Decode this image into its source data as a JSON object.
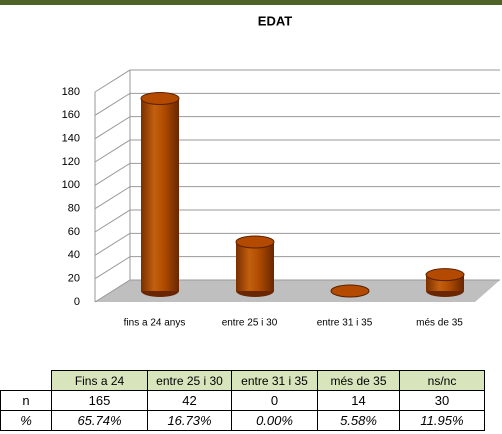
{
  "chart_data": {
    "type": "bar",
    "title": "EDAT",
    "categories": [
      "fins a 24 anys",
      "entre 25 i 30",
      "entre 31 i 35",
      "més de 35"
    ],
    "values": [
      165,
      42,
      0,
      14
    ],
    "color": "#b34a00",
    "ylim": [
      0,
      180
    ],
    "yticks": [
      0,
      20,
      40,
      60,
      80,
      100,
      120,
      140,
      160,
      180
    ],
    "grid": true
  },
  "table": {
    "header": [
      "Fins a 24",
      "entre 25 i 30",
      "entre 31 i 35",
      "més de 35",
      "ns/nc"
    ],
    "rows": [
      [
        "n",
        165,
        42,
        0,
        14,
        30
      ],
      [
        "%",
        "65.74%",
        "16.73%",
        "0.00%",
        "5.58%",
        "11.95%"
      ]
    ]
  }
}
